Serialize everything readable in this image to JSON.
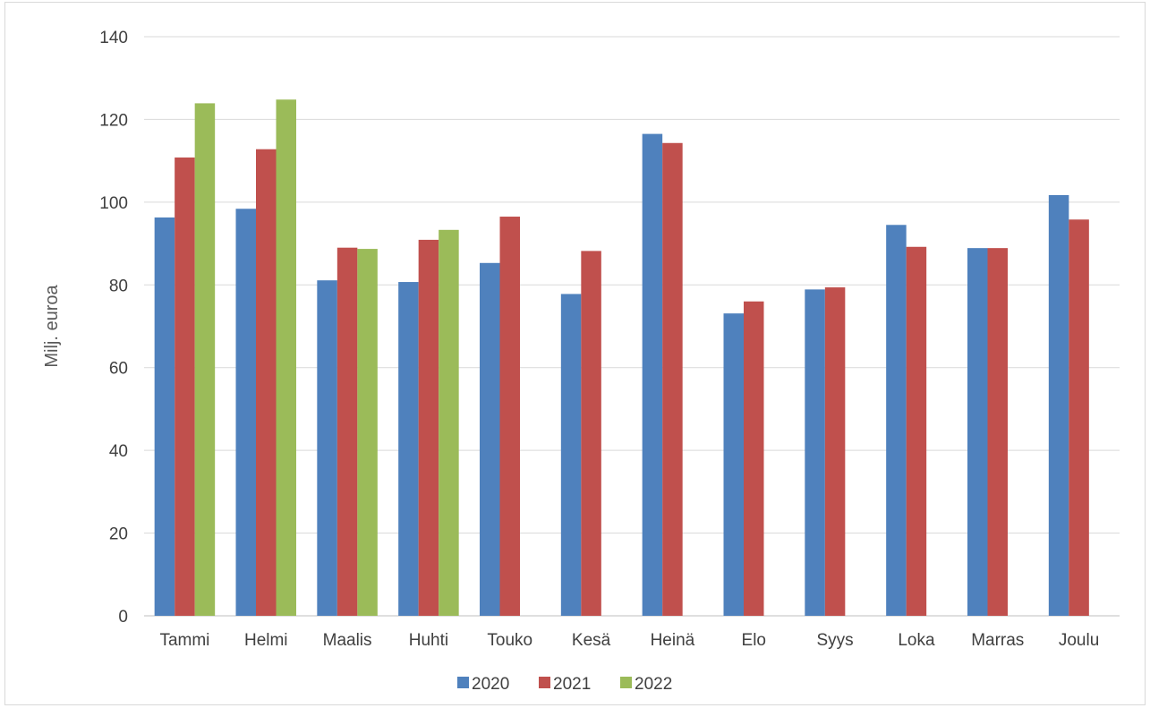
{
  "chart_data": {
    "type": "bar",
    "ylabel": "Milj. euroa",
    "ylim": [
      0,
      140
    ],
    "y_ticks": [
      0,
      20,
      40,
      60,
      80,
      100,
      120,
      140
    ],
    "grid": true,
    "legend_position": "bottom",
    "categories": [
      "Tammi",
      "Helmi",
      "Maalis",
      "Huhti",
      "Touko",
      "Kesä",
      "Heinä",
      "Elo",
      "Syys",
      "Loka",
      "Marras",
      "Joulu"
    ],
    "series": [
      {
        "name": "2020",
        "color": "#4f81bd",
        "values": [
          96.3,
          98.4,
          81.1,
          80.7,
          85.3,
          77.8,
          116.5,
          73.1,
          78.9,
          94.5,
          88.9,
          101.7
        ]
      },
      {
        "name": "2021",
        "color": "#c0504d",
        "values": [
          110.8,
          112.8,
          89.0,
          90.9,
          96.5,
          88.2,
          114.3,
          76.0,
          79.4,
          89.2,
          88.9,
          95.8
        ]
      },
      {
        "name": "2022",
        "color": "#9bbb59",
        "values": [
          123.9,
          124.8,
          88.7,
          93.3,
          null,
          null,
          null,
          null,
          null,
          null,
          null,
          null
        ]
      }
    ]
  }
}
